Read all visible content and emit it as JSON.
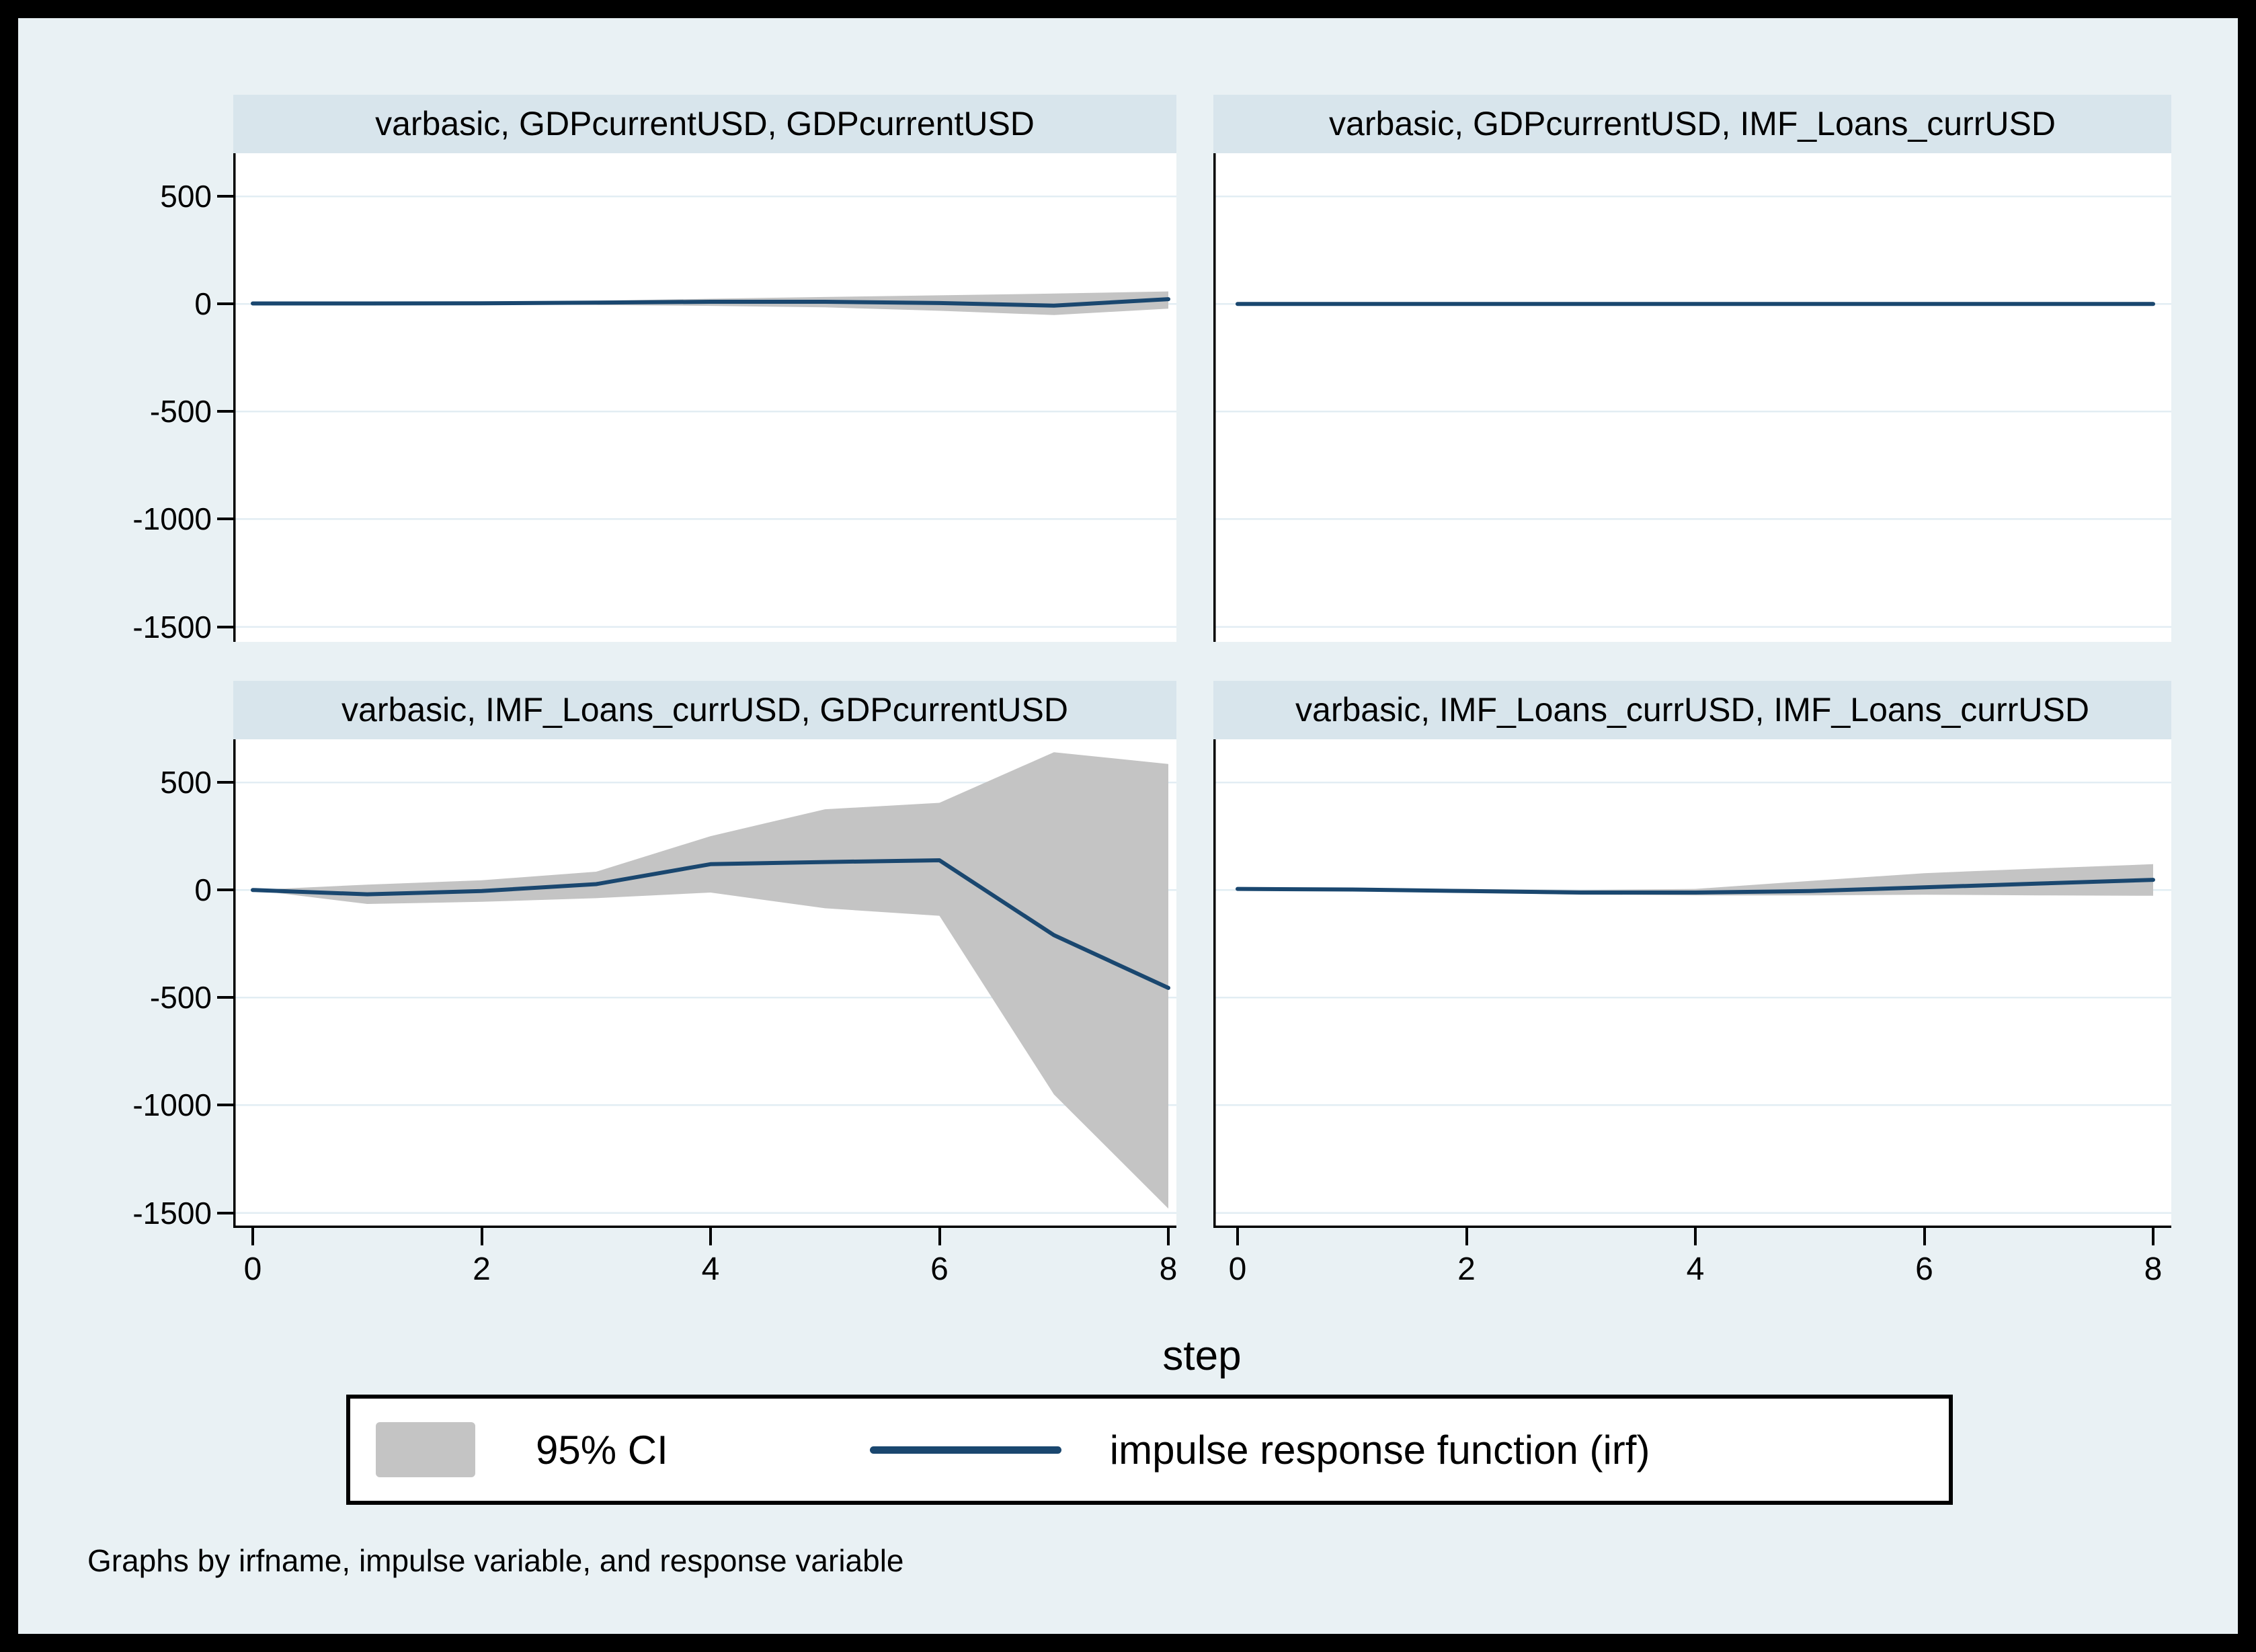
{
  "figure": {
    "xlabel": "step",
    "note": "Graphs by irfname, impulse variable, and response variable"
  },
  "legend": {
    "ci_label": "95% CI",
    "irf_label": "impulse response function (irf)"
  },
  "axis": {
    "y_tick_labels": [
      "500",
      "0",
      "-500",
      "-1000",
      "-1500"
    ],
    "x_tick_labels": [
      "0",
      "2",
      "4",
      "6",
      "8"
    ]
  },
  "colors": {
    "frame": "#000000",
    "background": "#e9f1f4",
    "title_bar": "#d8e5ec",
    "plot_bg": "#ffffff",
    "gridline": "#e2edf3",
    "axis": "#000000",
    "irf_line": "#1a476f",
    "ci_fill": "#c4c4c4",
    "text": "#000000"
  },
  "chart_data": {
    "type": "line",
    "subtype": "impulse-response small multiples (2 x 2, Stata varbasic)",
    "title": "",
    "xlabel": "step",
    "ylabel": "",
    "x": [
      0,
      1,
      2,
      3,
      4,
      5,
      6,
      7,
      8
    ],
    "x_ticks": [
      0,
      2,
      4,
      6,
      8
    ],
    "y_ticks": [
      500,
      0,
      -500,
      -1000,
      -1500
    ],
    "xlim": [
      -0.17,
      8.1
    ],
    "ylim": [
      -1570,
      700
    ],
    "grid": true,
    "legend_entries": [
      "95% CI",
      "impulse response function (irf)"
    ],
    "legend_position": "bottom",
    "panels": [
      {
        "title": "varbasic, GDPcurrentUSD, GDPcurrentUSD",
        "impulse": "GDPcurrentUSD",
        "response": "GDPcurrentUSD",
        "irf": [
          2,
          2,
          3,
          6,
          10,
          10,
          4,
          -8,
          22
        ],
        "ci_upper": [
          2,
          5,
          9,
          15,
          24,
          32,
          40,
          48,
          58
        ],
        "ci_lower": [
          2,
          -1,
          -3,
          -5,
          -9,
          -16,
          -32,
          -52,
          -22
        ]
      },
      {
        "title": "varbasic, GDPcurrentUSD, IMF_Loans_currUSD",
        "impulse": "GDPcurrentUSD",
        "response": "IMF_Loans_currUSD",
        "irf": [
          0,
          0,
          0,
          0,
          0,
          0,
          0,
          0,
          0
        ],
        "ci_upper": [
          0,
          1,
          1,
          2,
          2,
          3,
          5,
          7,
          9
        ],
        "ci_lower": [
          0,
          -1,
          -1,
          -1,
          -2,
          -2,
          -3,
          -4,
          -5
        ]
      },
      {
        "title": "varbasic, IMF_Loans_currUSD, GDPcurrentUSD",
        "impulse": "IMF_Loans_currUSD",
        "response": "GDPcurrentUSD",
        "irf": [
          0,
          -20,
          -5,
          27,
          120,
          130,
          138,
          -210,
          -455
        ],
        "ci_upper": [
          0,
          25,
          45,
          85,
          250,
          375,
          405,
          640,
          585
        ],
        "ci_lower": [
          0,
          -65,
          -55,
          -38,
          -12,
          -85,
          -120,
          -950,
          -1480
        ]
      },
      {
        "title": "varbasic, IMF_Loans_currUSD, IMF_Loans_currUSD",
        "impulse": "IMF_Loans_currUSD",
        "response": "IMF_Loans_currUSD",
        "irf": [
          5,
          2,
          -5,
          -12,
          -12,
          -5,
          12,
          30,
          47
        ],
        "ci_upper": [
          5,
          6,
          5,
          0,
          5,
          42,
          78,
          100,
          120
        ],
        "ci_lower": [
          5,
          -2,
          -12,
          -22,
          -25,
          -25,
          -22,
          -25,
          -27
        ]
      }
    ]
  }
}
